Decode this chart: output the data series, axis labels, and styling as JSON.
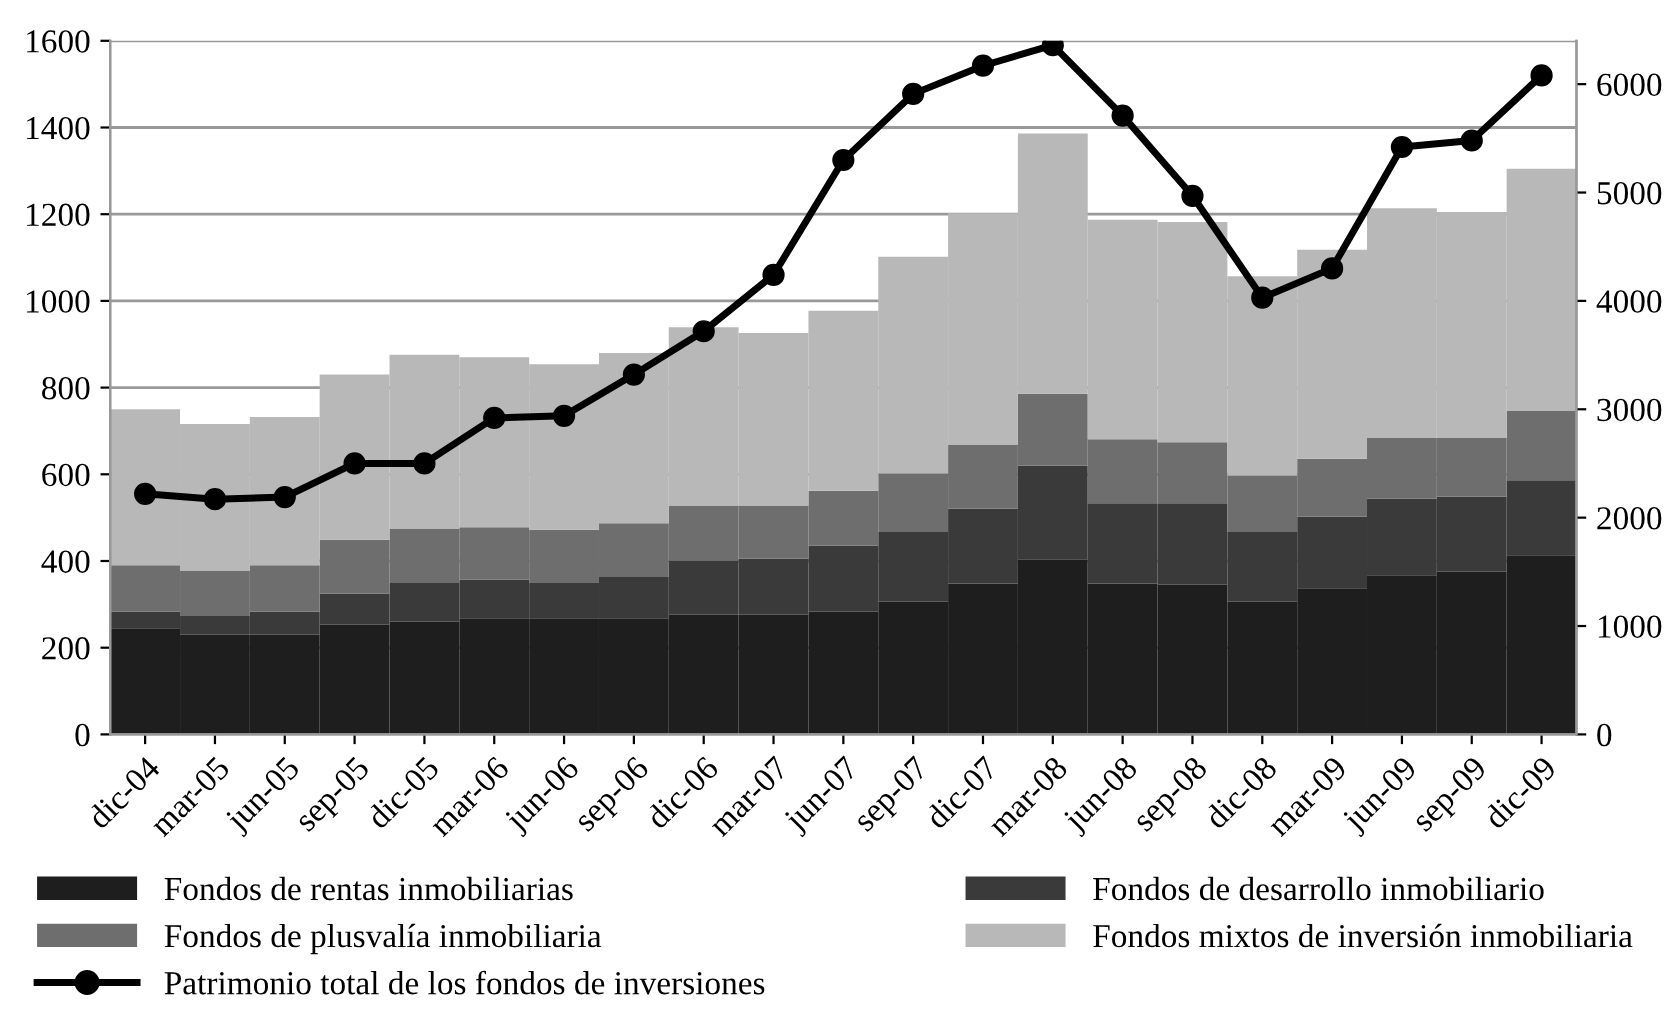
{
  "chart_data": {
    "type": "bar",
    "stacked": true,
    "categories": [
      "dic-04",
      "mar-05",
      "jun-05",
      "sep-05",
      "dic-05",
      "mar-06",
      "jun-06",
      "sep-06",
      "dic-06",
      "mar-07",
      "jun-07",
      "sep-07",
      "dic-07",
      "mar-08",
      "jun-08",
      "sep-08",
      "dic-08",
      "mar-09",
      "jun-09",
      "sep-09",
      "dic-09"
    ],
    "series": [
      {
        "name": "Fondos de rentas inmobiliarias",
        "color": "#1e1e1e",
        "values": [
          245,
          230,
          230,
          253,
          260,
          268,
          268,
          268,
          276,
          276,
          283,
          306,
          348,
          403,
          348,
          345,
          306,
          337,
          367,
          375,
          413
        ]
      },
      {
        "name": "Fondos de desarrollo inmobiliario",
        "color": "#3a3a3a",
        "values": [
          38,
          43,
          53,
          72,
          89,
          89,
          81,
          95,
          125,
          130,
          153,
          161,
          173,
          217,
          185,
          188,
          161,
          165,
          177,
          173,
          173
        ]
      },
      {
        "name": "Fondos de plusvalía inmobiliaria",
        "color": "#6e6e6e",
        "values": [
          107,
          105,
          107,
          124,
          126,
          121,
          123,
          124,
          127,
          122,
          126,
          135,
          148,
          166,
          148,
          141,
          130,
          134,
          140,
          136,
          160
        ]
      },
      {
        "name": "Fondos mixtos de inversión inmobiliaria",
        "color": "#b8b8b8",
        "values": [
          360,
          338,
          342,
          381,
          401,
          392,
          382,
          393,
          411,
          398,
          415,
          500,
          533,
          600,
          506,
          508,
          460,
          482,
          530,
          521,
          559
        ]
      },
      {
        "name": "Patrimonio total de los fondos de inversiones",
        "type": "line",
        "axis": "y2",
        "color": "#000000",
        "marker": "circle",
        "line_style": "solid",
        "values": [
          2220,
          2170,
          2190,
          2500,
          2500,
          2920,
          2940,
          3320,
          3720,
          4240,
          5300,
          5910,
          6170,
          6360,
          5710,
          4970,
          4030,
          4300,
          5420,
          5480,
          6080
        ]
      }
    ],
    "ylim": [
      0,
      1600
    ],
    "yticks": [
      0,
      200,
      400,
      600,
      800,
      1000,
      1200,
      1400,
      1600
    ],
    "y2lim": [
      0,
      6400
    ],
    "y2ticks": [
      0,
      1000,
      2000,
      3000,
      4000,
      5000,
      6000
    ],
    "grid": "y",
    "legend": "bottom"
  }
}
